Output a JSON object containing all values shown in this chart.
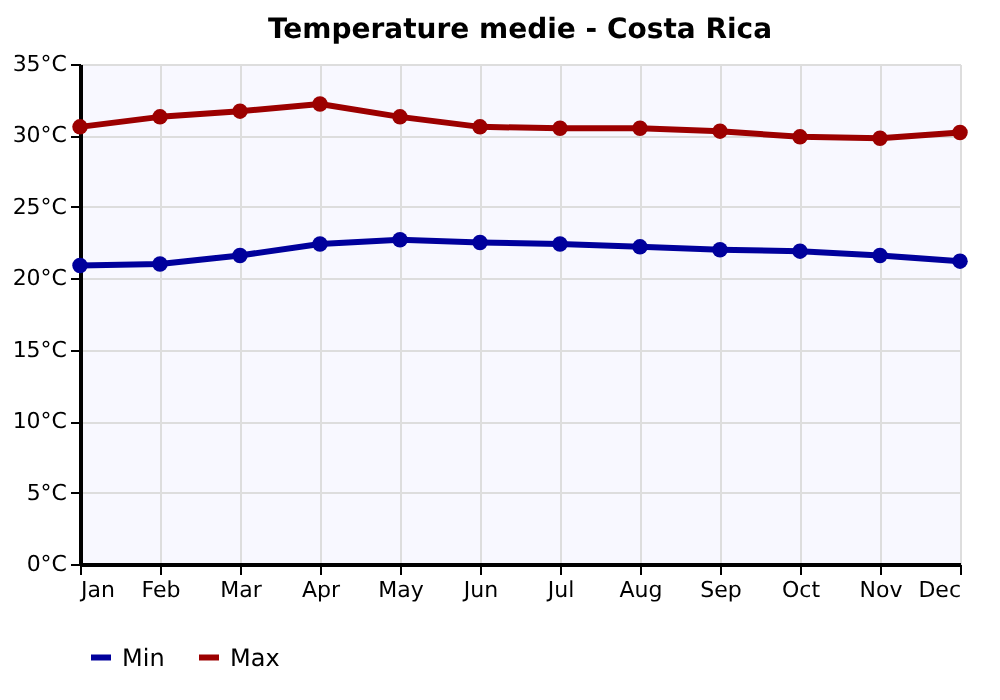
{
  "chart_data": {
    "type": "line",
    "title": "Temperature medie - Costa Rica",
    "categories": [
      "Jan",
      "Feb",
      "Mar",
      "Apr",
      "May",
      "Jun",
      "Jul",
      "Aug",
      "Sep",
      "Oct",
      "Nov",
      "Dec"
    ],
    "series": [
      {
        "name": "Min",
        "color": "#00009c",
        "values": [
          20.9,
          21.0,
          21.6,
          22.4,
          22.7,
          22.5,
          22.4,
          22.2,
          22.0,
          21.9,
          21.6,
          21.2
        ]
      },
      {
        "name": "Max",
        "color": "#9c0000",
        "values": [
          30.6,
          31.3,
          31.7,
          32.2,
          31.3,
          30.6,
          30.5,
          30.5,
          30.3,
          29.9,
          29.8,
          30.2
        ]
      }
    ],
    "ylim": [
      0,
      35
    ],
    "yticks": [
      {
        "value": 0,
        "label": "0°C"
      },
      {
        "value": 5,
        "label": "5°C"
      },
      {
        "value": 10,
        "label": "10°C"
      },
      {
        "value": 15,
        "label": "15°C"
      },
      {
        "value": 20,
        "label": "20°C"
      },
      {
        "value": 25,
        "label": "25°C"
      },
      {
        "value": 30,
        "label": "30°C"
      },
      {
        "value": 35,
        "label": "35°C"
      }
    ],
    "grid": true,
    "legend": "bottom left",
    "marker": "circle",
    "line_style": "solid"
  }
}
